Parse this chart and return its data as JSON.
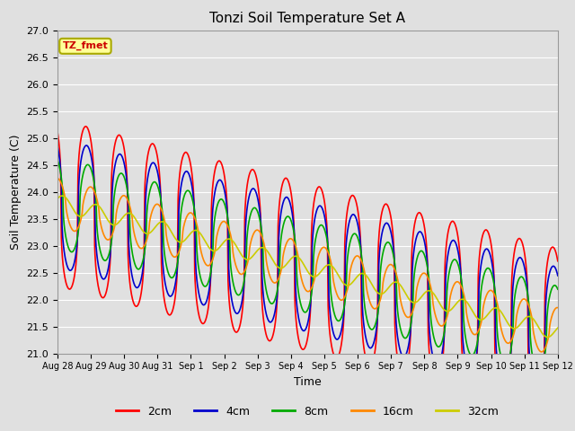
{
  "title": "Tonzi Soil Temperature Set A",
  "xlabel": "Time",
  "ylabel": "Soil Temperature (C)",
  "ylim": [
    21.0,
    27.0
  ],
  "yticks": [
    21.0,
    21.5,
    22.0,
    22.5,
    23.0,
    23.5,
    24.0,
    24.5,
    25.0,
    25.5,
    26.0,
    26.5,
    27.0
  ],
  "bg_color": "#e0e0e0",
  "fig_color": "#e0e0e0",
  "legend_label": "TZ_fmet",
  "legend_box_facecolor": "#ffff99",
  "legend_box_edgecolor": "#aaaa00",
  "series_labels": [
    "2cm",
    "4cm",
    "8cm",
    "16cm",
    "32cm"
  ],
  "series_colors": [
    "#ff0000",
    "#0000cc",
    "#00aa00",
    "#ff8800",
    "#cccc00"
  ],
  "series_linewidths": [
    1.2,
    1.2,
    1.2,
    1.2,
    1.2
  ],
  "num_days": 15,
  "xtick_labels": [
    "Aug 28",
    "Aug 29",
    "Aug 30",
    "Aug 31",
    "Sep 1",
    "Sep 2",
    "Sep 3",
    "Sep 4",
    "Sep 5",
    "Sep 6",
    "Sep 7",
    "Sep 8",
    "Sep 9",
    "Sep 10",
    "Sep 11",
    "Sep 12"
  ],
  "base_temp": 23.8,
  "trend_slope": -0.16,
  "amplitudes": [
    1.55,
    1.2,
    0.85,
    0.45,
    0.15
  ],
  "phase_delays_hours": [
    14.5,
    15.0,
    16.0,
    18.0,
    22.0
  ],
  "sharpness": [
    3.0,
    2.5,
    2.0,
    1.5,
    1.0
  ]
}
